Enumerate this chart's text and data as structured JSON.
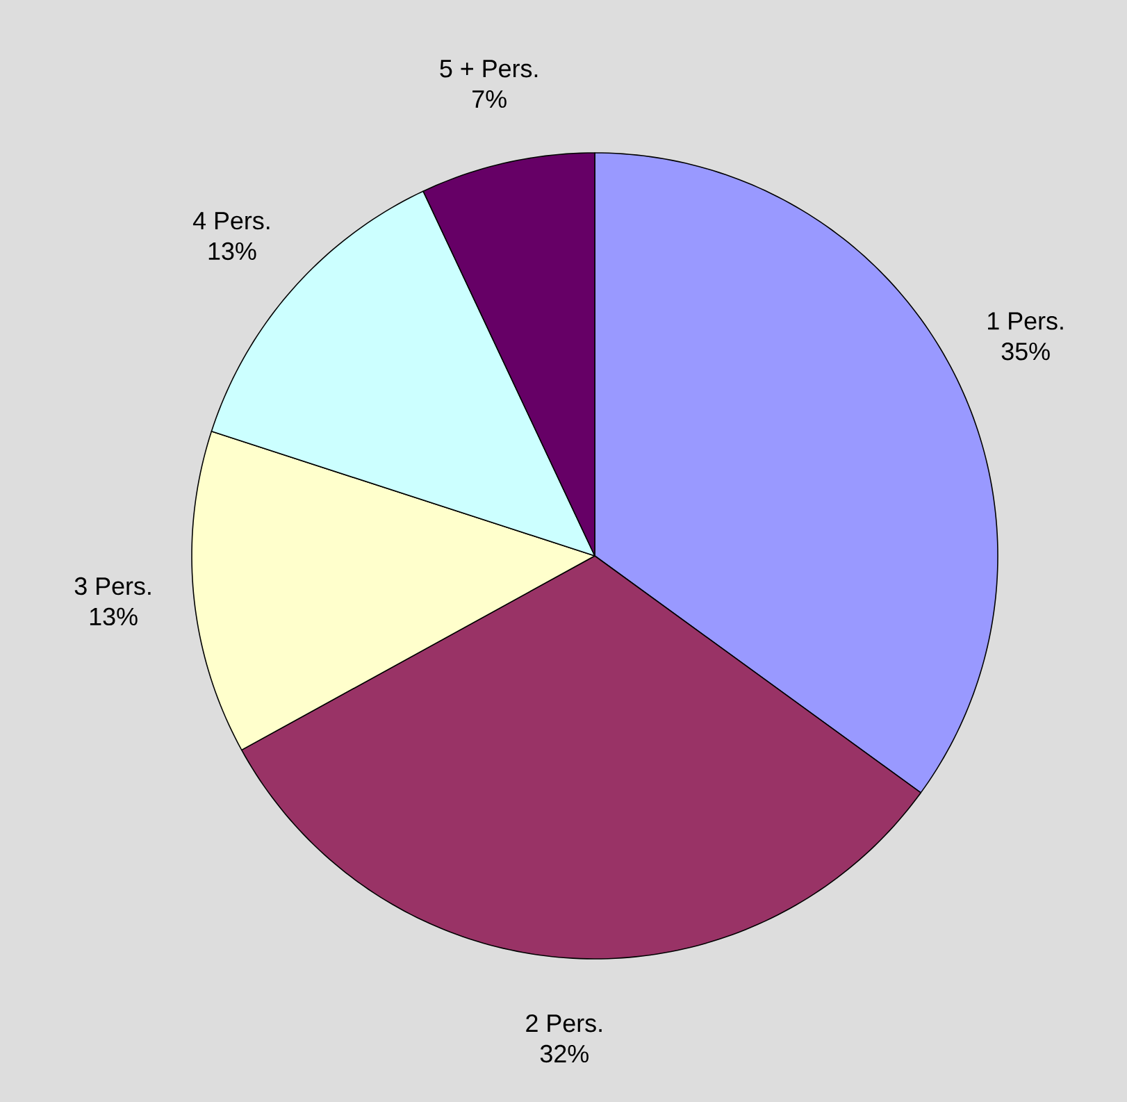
{
  "chart_data": {
    "type": "pie",
    "categories": [
      "1 Pers.",
      "2 Pers.",
      "3 Pers.",
      "4 Pers.",
      "5 + Pers."
    ],
    "values": [
      35,
      32,
      13,
      13,
      7
    ],
    "colors": [
      "#9999ff",
      "#993366",
      "#ffffcc",
      "#ccffff",
      "#660066"
    ],
    "value_labels": [
      "35%",
      "32%",
      "13%",
      "13%",
      "7%"
    ]
  }
}
